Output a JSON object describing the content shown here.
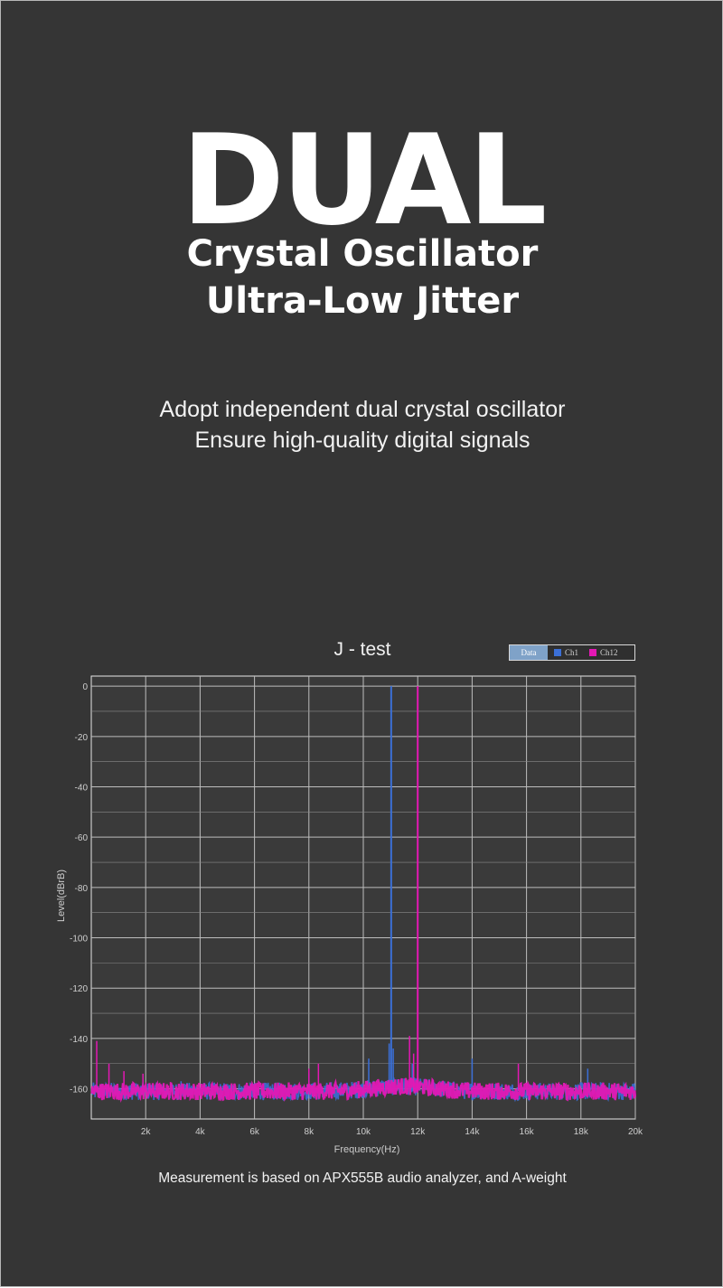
{
  "headline": "DUAL",
  "subheadline": [
    "Crystal Oscillator",
    "Ultra-Low Jitter"
  ],
  "description": [
    "Adopt independent dual crystal oscillator",
    "Ensure high-quality digital signals"
  ],
  "footnote": "Measurement is based on APX555B audio analyzer, and A-weight",
  "colors": {
    "background": "#353535",
    "ch1": "#3b6fd6",
    "ch12": "#e318b4"
  },
  "chart_data": {
    "type": "line",
    "title": "J - test",
    "xlabel": "Frequency(Hz)",
    "ylabel": "Level(dBrB)",
    "xlim": [
      0,
      20000
    ],
    "ylim": [
      -172,
      4
    ],
    "x_ticks": [
      2000,
      4000,
      6000,
      8000,
      10000,
      12000,
      14000,
      16000,
      18000,
      20000
    ],
    "x_tick_labels": [
      "2k",
      "4k",
      "6k",
      "8k",
      "10k",
      "12k",
      "14k",
      "16k",
      "18k",
      "20k"
    ],
    "y_ticks": [
      0,
      -20,
      -40,
      -60,
      -80,
      -100,
      -120,
      -140,
      -160
    ],
    "y_tick_labels": [
      "0",
      "-20",
      "-40",
      "-60",
      "-80",
      "-100",
      "-120",
      "-140",
      "-160"
    ],
    "grid": true,
    "legend": {
      "position": "top-right",
      "entries": [
        "Data",
        "Ch1",
        "Ch12"
      ]
    },
    "series": [
      {
        "name": "Ch1",
        "color": "#3b6fd6",
        "noise_floor": -161,
        "peaks": [
          {
            "x": 11025,
            "y": 0
          },
          {
            "x": 10950,
            "y": -142
          },
          {
            "x": 11100,
            "y": -144
          },
          {
            "x": 10200,
            "y": -148
          },
          {
            "x": 11800,
            "y": -150
          },
          {
            "x": 14000,
            "y": -148
          },
          {
            "x": 18250,
            "y": -152
          },
          {
            "x": 8000,
            "y": -154
          },
          {
            "x": 3300,
            "y": -157
          }
        ]
      },
      {
        "name": "Ch12",
        "color": "#e318b4",
        "noise_floor": -161,
        "peaks": [
          {
            "x": 12000,
            "y": 0
          },
          {
            "x": 11700,
            "y": -139
          },
          {
            "x": 11850,
            "y": -146
          },
          {
            "x": 200,
            "y": -141
          },
          {
            "x": 650,
            "y": -150
          },
          {
            "x": 1200,
            "y": -153
          },
          {
            "x": 1900,
            "y": -154
          },
          {
            "x": 8000,
            "y": -152
          },
          {
            "x": 8350,
            "y": -150
          },
          {
            "x": 15700,
            "y": -150
          }
        ]
      }
    ]
  }
}
